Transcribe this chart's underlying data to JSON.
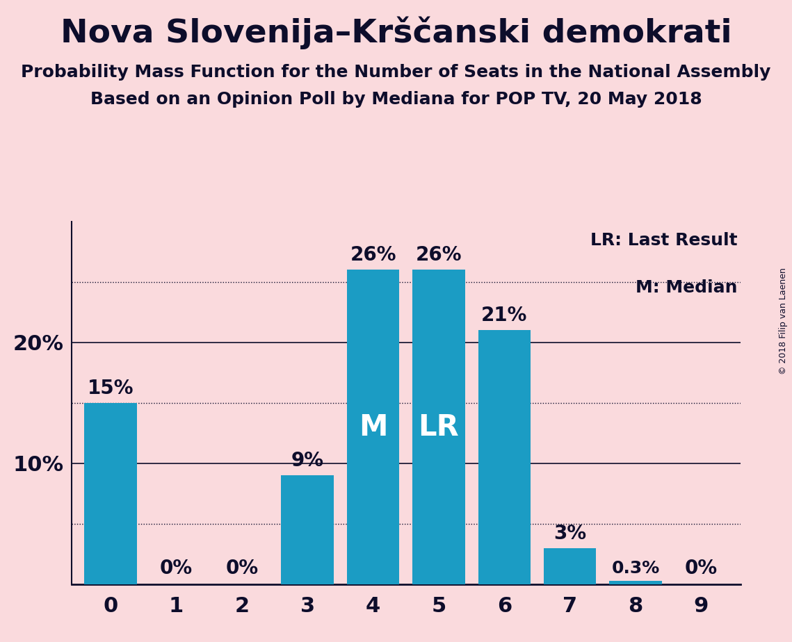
{
  "title": "Nova Slovenija–Krščanski demokrati",
  "subtitle1": "Probability Mass Function for the Number of Seats in the National Assembly",
  "subtitle2": "Based on an Opinion Poll by Mediana for POP TV, 20 May 2018",
  "copyright": "© 2018 Filip van Laenen",
  "categories": [
    0,
    1,
    2,
    3,
    4,
    5,
    6,
    7,
    8,
    9
  ],
  "values": [
    15,
    0,
    0,
    9,
    26,
    26,
    21,
    3,
    0.3,
    0
  ],
  "bar_color": "#1B9CC4",
  "background_color": "#FADADD",
  "text_color": "#0D0D2B",
  "median_bar": 4,
  "lr_bar": 5,
  "legend_lr": "LR: Last Result",
  "legend_m": "M: Median",
  "solid_gridlines": [
    10,
    20
  ],
  "dotted_gridlines": [
    5,
    15,
    25
  ],
  "yticks": [
    10,
    20
  ],
  "ylim": [
    0,
    30
  ],
  "title_fontsize": 34,
  "subtitle_fontsize": 18,
  "tick_fontsize": 22,
  "label_fontsize": 20,
  "legend_fontsize": 18,
  "inner_label_fontsize": 30
}
